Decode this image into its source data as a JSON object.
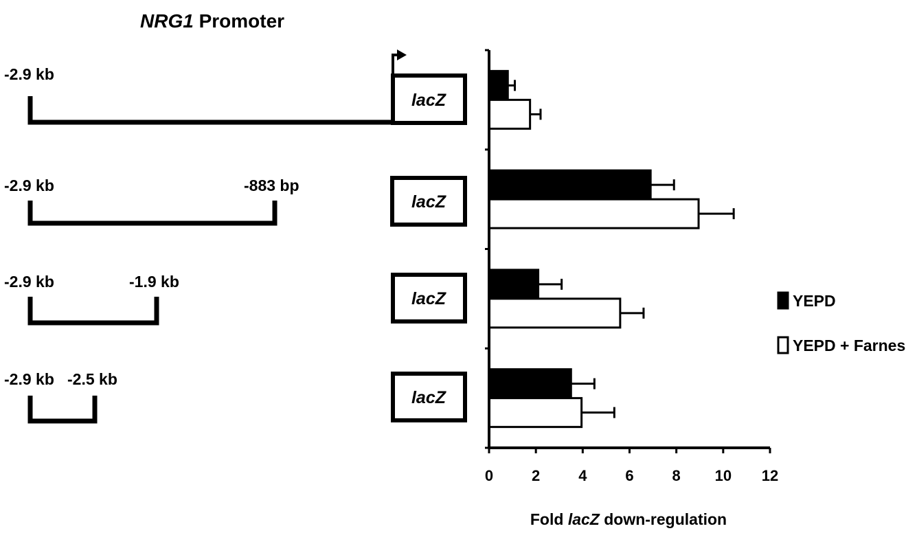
{
  "diagram": {
    "title_gene": "NRG1",
    "title_rest": " Promoter",
    "constructs": [
      {
        "left_label": "-2.9 kb",
        "right_label": "",
        "box_label": "lacZ"
      },
      {
        "left_label": "-2.9 kb",
        "right_label": "-883 bp",
        "box_label": "lacZ"
      },
      {
        "left_label": "-2.9 kb",
        "right_label": "-1.9 kb",
        "box_label": "lacZ"
      },
      {
        "left_label": "-2.9 kb",
        "right_label": "-2.5 kb",
        "box_label": "lacZ"
      }
    ]
  },
  "chart_data": {
    "type": "bar",
    "orientation": "horizontal",
    "categories": [
      "-2.9 kb",
      "-2.9 kb to -883 bp",
      "-2.9 kb to -1.9 kb",
      "-2.9 kb to -2.5 kb"
    ],
    "series": [
      {
        "name": "YEPD",
        "color": "#000000",
        "values": [
          0.8,
          6.9,
          2.1,
          3.5
        ],
        "errors": [
          0.3,
          1.0,
          1.0,
          1.0
        ]
      },
      {
        "name": "YEPD + Farnesol",
        "color": "#ffffff",
        "values": [
          1.75,
          8.95,
          5.6,
          3.95
        ],
        "errors": [
          0.45,
          1.5,
          1.0,
          1.4
        ]
      }
    ],
    "xlabel_pre": "Fold ",
    "xlabel_ital": "lacZ",
    "xlabel_post": " down-regulation",
    "xlim": [
      0,
      12
    ],
    "xticks": [
      "0",
      "2",
      "4",
      "6",
      "8",
      "10",
      "12"
    ],
    "grid": false,
    "legend": "right"
  }
}
